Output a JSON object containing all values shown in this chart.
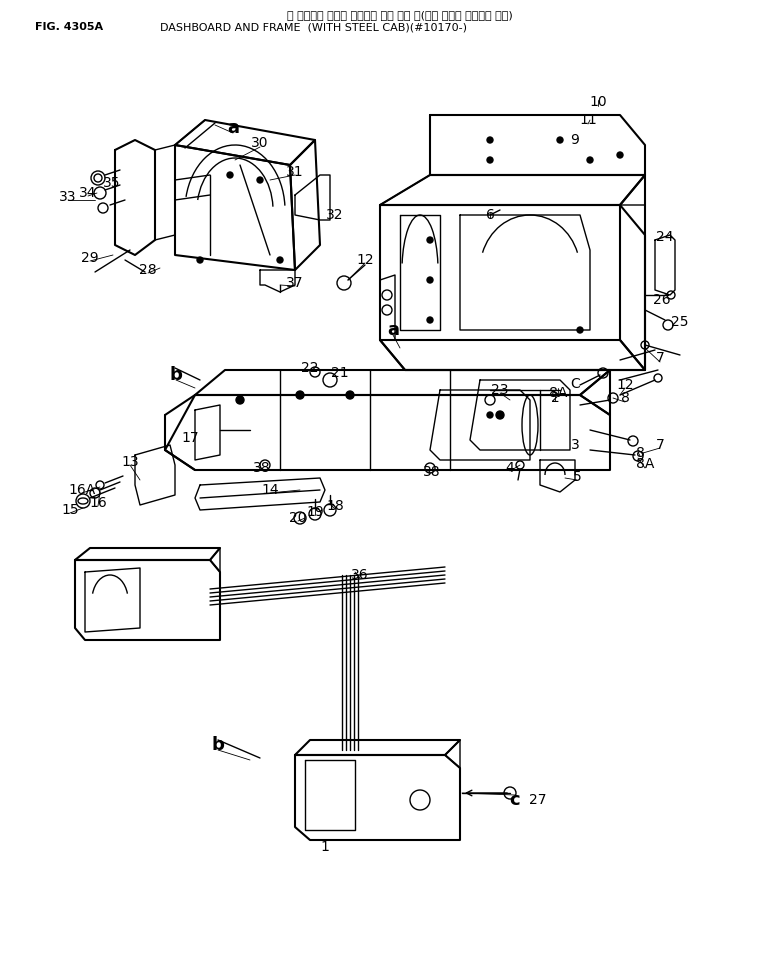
{
  "title_jp": "ダ ッシュボ ード　 および　 フレ ーム 　(ステ ール　 キャブ　 付き)",
  "title_en": "DASHBOARD AND FRAME  (WITH STEEL CAB)(#10170-)",
  "fig_label": "FIG. 4305A",
  "bg": "#ffffff",
  "lc": "#000000",
  "lw": 1.0,
  "lw2": 1.5,
  "figsize": [
    7.81,
    9.63
  ],
  "dpi": 100
}
